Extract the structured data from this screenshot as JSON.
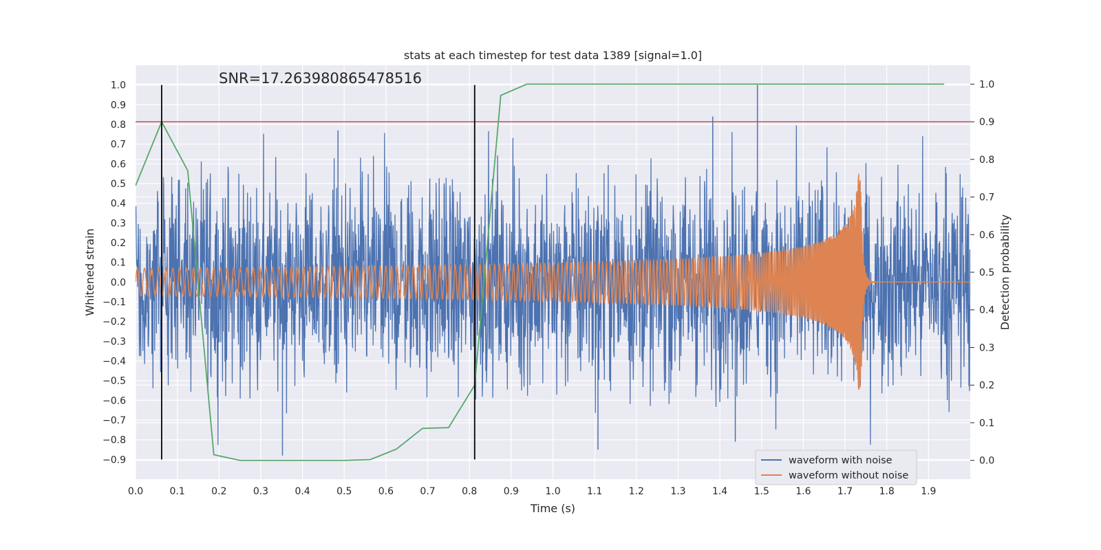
{
  "chart_data": {
    "type": "line",
    "title": "stats at each timestep for test data 1389 [signal=1.0]",
    "xlabel": "Time (s)",
    "ylabel": "Whitened strain",
    "y2label": "Detection probability",
    "annotation": "SNR=17.263980865478516",
    "xlim": [
      0.0,
      2.0
    ],
    "ylim": [
      -1.0,
      1.1
    ],
    "y2lim": [
      -0.05,
      1.05
    ],
    "xticks": [
      "0.0",
      "0.1",
      "0.2",
      "0.3",
      "0.4",
      "0.5",
      "0.6",
      "0.7",
      "0.8",
      "0.9",
      "1.0",
      "1.1",
      "1.2",
      "1.3",
      "1.4",
      "1.5",
      "1.6",
      "1.7",
      "1.8",
      "1.9"
    ],
    "yticks": [
      "−0.9",
      "−0.8",
      "−0.7",
      "−0.6",
      "−0.5",
      "−0.4",
      "−0.3",
      "−0.2",
      "−0.1",
      "0.0",
      "0.1",
      "0.2",
      "0.3",
      "0.4",
      "0.5",
      "0.6",
      "0.7",
      "0.8",
      "0.9",
      "1.0"
    ],
    "y2ticks": [
      "0.0",
      "0.1",
      "0.2",
      "0.3",
      "0.4",
      "0.5",
      "0.6",
      "0.7",
      "0.8",
      "0.9",
      "1.0"
    ],
    "grid": true,
    "legend_position": "lower-right",
    "series": [
      {
        "name": "waveform with noise",
        "color": "#4c72b0",
        "axis": "left",
        "description_values": "dense noisy strain between about -0.87 and 1.0, peak 1.0 near t=1.49"
      },
      {
        "name": "waveform without noise",
        "color": "#dd8452",
        "axis": "left",
        "amplitude_start": 0.07,
        "amplitude_peak": 0.55,
        "merger_time": 1.74
      },
      {
        "name": "",
        "color": "#55a868",
        "axis": "right",
        "x": [
          0.0,
          0.0625,
          0.125,
          0.1875,
          0.25,
          0.3125,
          0.375,
          0.4375,
          0.5,
          0.5625,
          0.625,
          0.6875,
          0.75,
          0.8125,
          0.875,
          0.9375,
          1.0,
          1.0625,
          1.125,
          1.1875,
          1.25,
          1.3125,
          1.375,
          1.4375,
          1.5,
          1.5625,
          1.625,
          1.6875,
          1.75,
          1.8125,
          1.875,
          1.9375
        ],
        "y": [
          0.73,
          0.9,
          0.77,
          0.015,
          0.0,
          0.0,
          0.0,
          0.0,
          0.0,
          0.002,
          0.03,
          0.085,
          0.087,
          0.2,
          0.97,
          1.0,
          1.0,
          1.0,
          1.0,
          1.0,
          1.0,
          1.0,
          1.0,
          1.0,
          1.0,
          1.0,
          1.0,
          1.0,
          1.0,
          1.0,
          1.0,
          1.0
        ]
      }
    ],
    "threshold": {
      "axis": "right",
      "value": 0.9,
      "color": "#c44e52"
    },
    "markers": {
      "times": [
        0.0625,
        0.8125
      ],
      "color": "#000000",
      "y_from": -0.9,
      "y_to": 1.0
    }
  }
}
